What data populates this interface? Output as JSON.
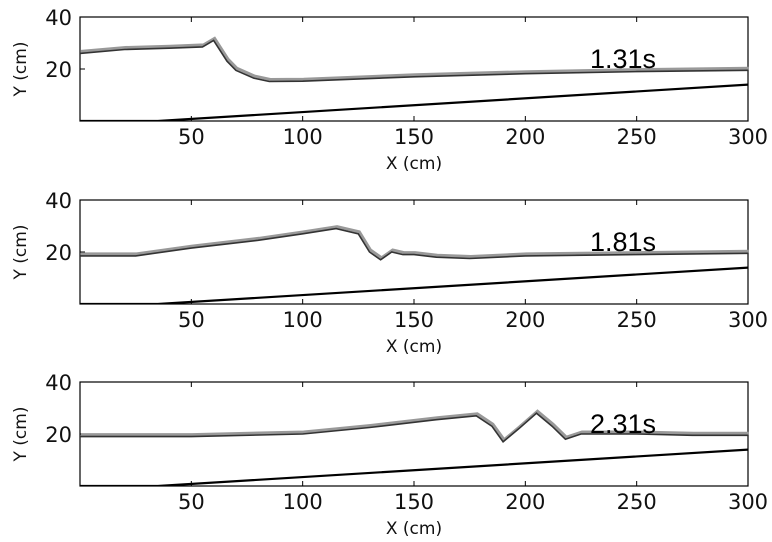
{
  "chart_data": [
    {
      "type": "line",
      "time_label": "1.31s",
      "xlabel": "X (cm)",
      "ylabel": "Y (cm)",
      "xlim": [
        0,
        300
      ],
      "ylim": [
        0,
        40
      ],
      "x_ticks": [
        "50",
        "100",
        "150",
        "200",
        "250",
        "300"
      ],
      "y_ticks": [
        "40",
        "20"
      ],
      "series": [
        {
          "role": "free-surface",
          "x": [
            0,
            20,
            40,
            55,
            60,
            63,
            66,
            70,
            78,
            85,
            100,
            150,
            200,
            250,
            300
          ],
          "y": [
            26,
            27.5,
            28,
            28.5,
            31,
            27,
            23,
            19.5,
            16.5,
            15.2,
            15.3,
            17,
            18.2,
            19,
            19.5
          ]
        },
        {
          "role": "sloping-bottom",
          "x": [
            0,
            35,
            300
          ],
          "y": [
            0,
            0,
            14
          ]
        }
      ]
    },
    {
      "type": "line",
      "time_label": "1.81s",
      "xlabel": "X (cm)",
      "ylabel": "Y (cm)",
      "xlim": [
        0,
        300
      ],
      "ylim": [
        0,
        40
      ],
      "x_ticks": [
        "50",
        "100",
        "150",
        "200",
        "250",
        "300"
      ],
      "y_ticks": [
        "40",
        "20"
      ],
      "series": [
        {
          "role": "free-surface",
          "x": [
            0,
            25,
            50,
            80,
            100,
            115,
            125,
            130,
            135,
            140,
            145,
            150,
            160,
            175,
            200,
            250,
            300
          ],
          "y": [
            18.5,
            18.5,
            21.5,
            24.5,
            27,
            29,
            27,
            20,
            17,
            20,
            19,
            19,
            18,
            17.5,
            18.5,
            19,
            19.5
          ]
        },
        {
          "role": "sloping-bottom",
          "x": [
            0,
            35,
            300
          ],
          "y": [
            0,
            0,
            14
          ]
        }
      ]
    },
    {
      "type": "line",
      "time_label": "2.31s",
      "xlabel": "X (cm)",
      "ylabel": "Y (cm)",
      "xlim": [
        0,
        300
      ],
      "ylim": [
        0,
        40
      ],
      "x_ticks": [
        "50",
        "100",
        "150",
        "200",
        "250",
        "300"
      ],
      "y_ticks": [
        "40",
        "20"
      ],
      "series": [
        {
          "role": "free-surface",
          "x": [
            0,
            50,
            100,
            130,
            160,
            178,
            185,
            190,
            197,
            205,
            212,
            218,
            225,
            250,
            275,
            300
          ],
          "y": [
            19,
            19,
            20,
            22.5,
            25.5,
            27,
            23,
            17,
            22,
            28,
            23,
            18,
            20,
            20,
            19.5,
            19.5
          ]
        },
        {
          "role": "sloping-bottom",
          "x": [
            0,
            35,
            300
          ],
          "y": [
            0,
            0,
            14
          ]
        }
      ]
    }
  ]
}
